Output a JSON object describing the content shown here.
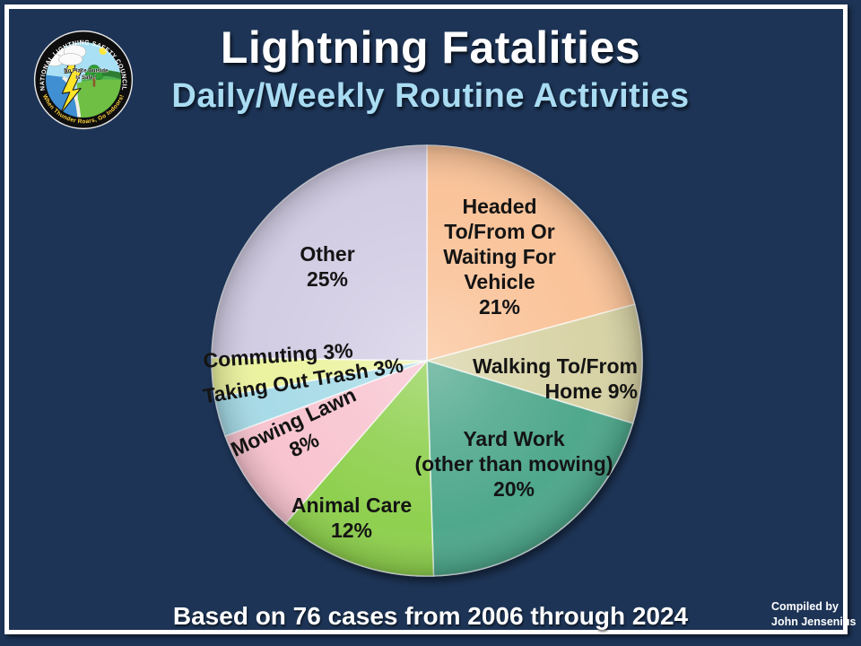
{
  "header": {
    "title": "Lightning Fatalities",
    "subtitle": "Daily/Weekly Routine Activities"
  },
  "logo": {
    "ring_text_top": "NATIONAL LIGHTNING SAFETY COUNCIL",
    "ring_text_bottom": "When Thunder Roars, Go Indoors!",
    "center_line1": "No Place Outside",
    "center_line2": "Is Safe !"
  },
  "footer": {
    "caption": "Based on 76 cases from 2006 through 2024",
    "credit": "Compiled by\nJohn Jensenius"
  },
  "colors": {
    "background": "#1D3456",
    "frame": "#FFFFFF",
    "title": "#FFFFFF",
    "subtitle": "#A9DCF2"
  },
  "chart_data": {
    "type": "pie",
    "title": "Lightning Fatalities",
    "subtitle": "Daily/Weekly Routine Activities",
    "caption": "Based on 76 cases from 2006 through 2024",
    "unit": "percent of cases",
    "start_angle_deg": -90,
    "direction": "clockwise",
    "legend_position": "labels-on-slices",
    "slices": [
      {
        "category": "Headed To/From Or Waiting For Vehicle",
        "value": 21,
        "color": "#FAC399",
        "display": "Headed\nTo/From Or\nWaiting For\nVehicle\n21%"
      },
      {
        "category": "Walking To/From Home",
        "value": 9,
        "color": "#D8D3A6",
        "display": "Walking To/From\nHome 9%"
      },
      {
        "category": "Yard Work (other than mowing)",
        "value": 20,
        "color": "#4FA88C",
        "display": "Yard Work\n(other than mowing)\n20%"
      },
      {
        "category": "Animal Care",
        "value": 12,
        "color": "#8FD04F",
        "display": "Animal Care\n12%"
      },
      {
        "category": "Mowing Lawn",
        "value": 8,
        "color": "#F8C4D0",
        "display": "Mowing Lawn\n8%"
      },
      {
        "category": "Taking Out Trash",
        "value": 3,
        "color": "#A7DBE7",
        "display": "Taking Out Trash 3%"
      },
      {
        "category": "Commuting",
        "value": 3,
        "color": "#EBF3A0",
        "display": "Commuting 3%"
      },
      {
        "category": "Other",
        "value": 25,
        "color": "#D3CDE4",
        "display": "Other\n25%"
      }
    ]
  }
}
